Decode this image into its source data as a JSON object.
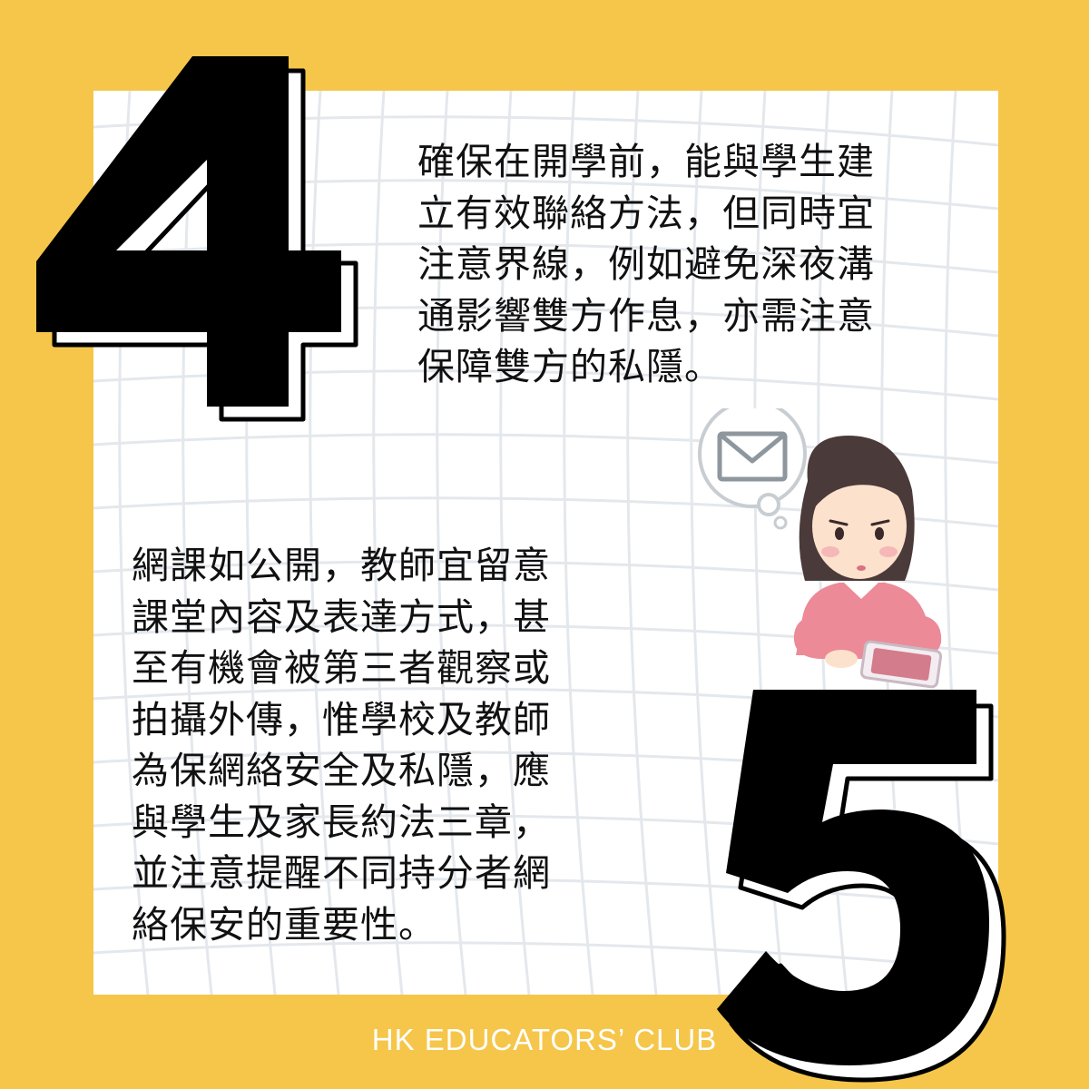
{
  "tips": [
    {
      "number": "4",
      "text": "確保在開學前，能與學生建\n立有效聯絡方法，但同時宜\n注意界線，例如避免深夜溝\n通影響雙方作息，亦需注意\n保障雙方的私隱。"
    },
    {
      "number": "5",
      "text": "網課如公開，教師宜留意\n課堂內容及表達方式，甚\n至有機會被第三者觀察或\n拍攝外傳，惟學校及教師\n為保網絡安全及私隱，應\n與學生及家長約法三章，\n並注意提醒不同持分者網\n絡保安的重要性。"
    }
  ],
  "footer": {
    "brand": "HK EDUCATORS’ CLUB"
  },
  "illustration": {
    "thought_icon": "envelope-icon",
    "device_icon": "smartphone-icon"
  },
  "colors": {
    "background": "#F5C64A",
    "card": "#FFFFFF",
    "grid": "#E4E8EC",
    "numeral": "#000000",
    "sweater": "#EC8A97",
    "hair": "#4A3A3A"
  }
}
